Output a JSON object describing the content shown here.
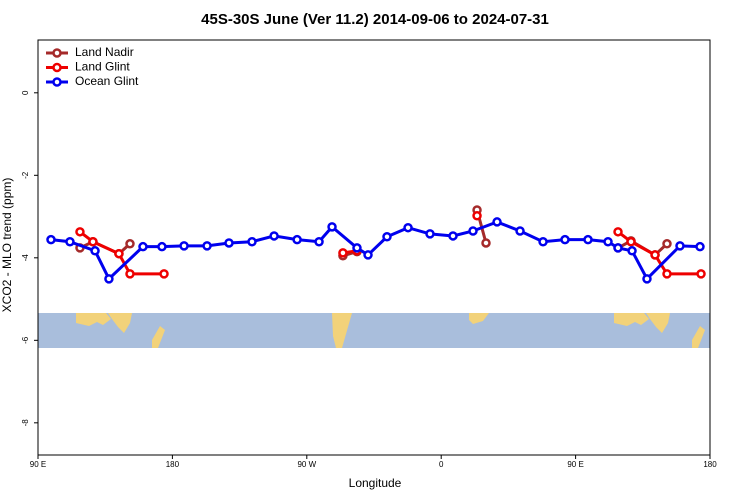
{
  "chart_data": {
    "type": "line",
    "title": "45S-30S June (Ver 11.2)   2014-09-06 to 2024-07-31",
    "x_label": "Longitude",
    "y_label": "XCO2 - MLO trend (ppm)",
    "xlim": [
      90,
      540
    ],
    "ylim": [
      -8.78,
      1.28
    ],
    "xticks": [
      {
        "value": 90,
        "label": "90 E"
      },
      180,
      {
        "value": 270,
        "label": "90 W"
      },
      {
        "value": 360,
        "label": "0"
      },
      {
        "value": 450,
        "label": "90 E"
      },
      {
        "value": 540,
        "label": "180"
      }
    ],
    "yticks": [
      0,
      -2,
      -4,
      -6,
      -8
    ],
    "legend": "top-left",
    "series": [
      {
        "name": "Land Nadir",
        "color": "#a52a2a",
        "x": [
          118.1,
          126.8,
          144.2,
          151.6,
          null,
          294.2,
          303.6,
          null,
          384.0,
          390.0,
          null,
          478.4,
          487.1,
          503.2,
          511.2
        ],
        "values": [
          -3.76,
          -3.61,
          -3.9,
          -3.66,
          null,
          -3.95,
          -3.85,
          null,
          -2.84,
          -3.64,
          null,
          -3.76,
          -3.59,
          -3.93,
          -3.66
        ]
      },
      {
        "name": "Land Glint",
        "color": "#ee0000",
        "x": [
          118.1,
          126.8,
          144.2,
          151.6,
          174.4,
          null,
          294.2,
          303.6,
          null,
          384.0,
          null,
          478.4,
          487.1,
          503.2,
          511.2,
          534.0
        ],
        "values": [
          -3.37,
          -3.61,
          -3.9,
          -4.39,
          -4.39,
          null,
          -3.88,
          -3.83,
          null,
          -2.98,
          null,
          -3.37,
          -3.61,
          -3.93,
          -4.39,
          -4.39
        ]
      },
      {
        "name": "Ocean Glint",
        "color": "#0000ee",
        "x": [
          98.7,
          111.4,
          128.2,
          137.5,
          160.3,
          173.0,
          187.8,
          203.2,
          217.9,
          233.3,
          248.1,
          263.5,
          278.2,
          286.9,
          303.6,
          311.0,
          323.7,
          337.8,
          352.5,
          367.9,
          381.3,
          397.4,
          412.8,
          428.2,
          442.9,
          458.3,
          471.7,
          478.4,
          487.8,
          497.8,
          519.9,
          533.3
        ],
        "values": [
          -3.56,
          -3.61,
          -3.83,
          -4.51,
          -3.73,
          -3.73,
          -3.71,
          -3.71,
          -3.64,
          -3.61,
          -3.47,
          -3.56,
          -3.61,
          -3.25,
          -3.76,
          -3.93,
          -3.49,
          -3.27,
          -3.42,
          -3.47,
          -3.35,
          -3.13,
          -3.35,
          -3.61,
          -3.56,
          -3.56,
          -3.61,
          -3.76,
          -3.83,
          -4.51,
          -3.71,
          -3.73
        ]
      }
    ]
  }
}
